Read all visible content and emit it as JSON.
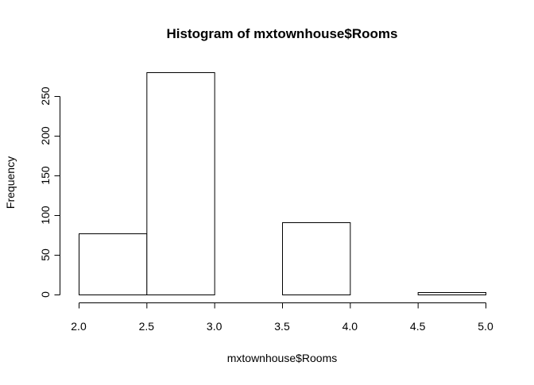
{
  "chart_data": {
    "type": "bar",
    "title": "Histogram of mxtownhouse$Rooms",
    "xlabel": "mxtownhouse$Rooms",
    "ylabel": "Frequency",
    "bins": [
      {
        "from": 2.0,
        "to": 2.5,
        "count": 77
      },
      {
        "from": 2.5,
        "to": 3.0,
        "count": 280
      },
      {
        "from": 3.0,
        "to": 3.5,
        "count": 0
      },
      {
        "from": 3.5,
        "to": 4.0,
        "count": 91
      },
      {
        "from": 4.0,
        "to": 4.5,
        "count": 0
      },
      {
        "from": 4.5,
        "to": 5.0,
        "count": 3
      }
    ],
    "xlim": [
      2.0,
      5.0
    ],
    "ylim": [
      0,
      280
    ],
    "x_ticks": [
      "2.0",
      "2.5",
      "3.0",
      "3.5",
      "4.0",
      "4.5",
      "5.0"
    ],
    "y_ticks": [
      "0",
      "50",
      "100",
      "150",
      "200",
      "250"
    ],
    "grid": false,
    "legend": "none",
    "colors": {
      "bar_fill": "#ffffff",
      "bar_stroke": "#000000"
    }
  }
}
